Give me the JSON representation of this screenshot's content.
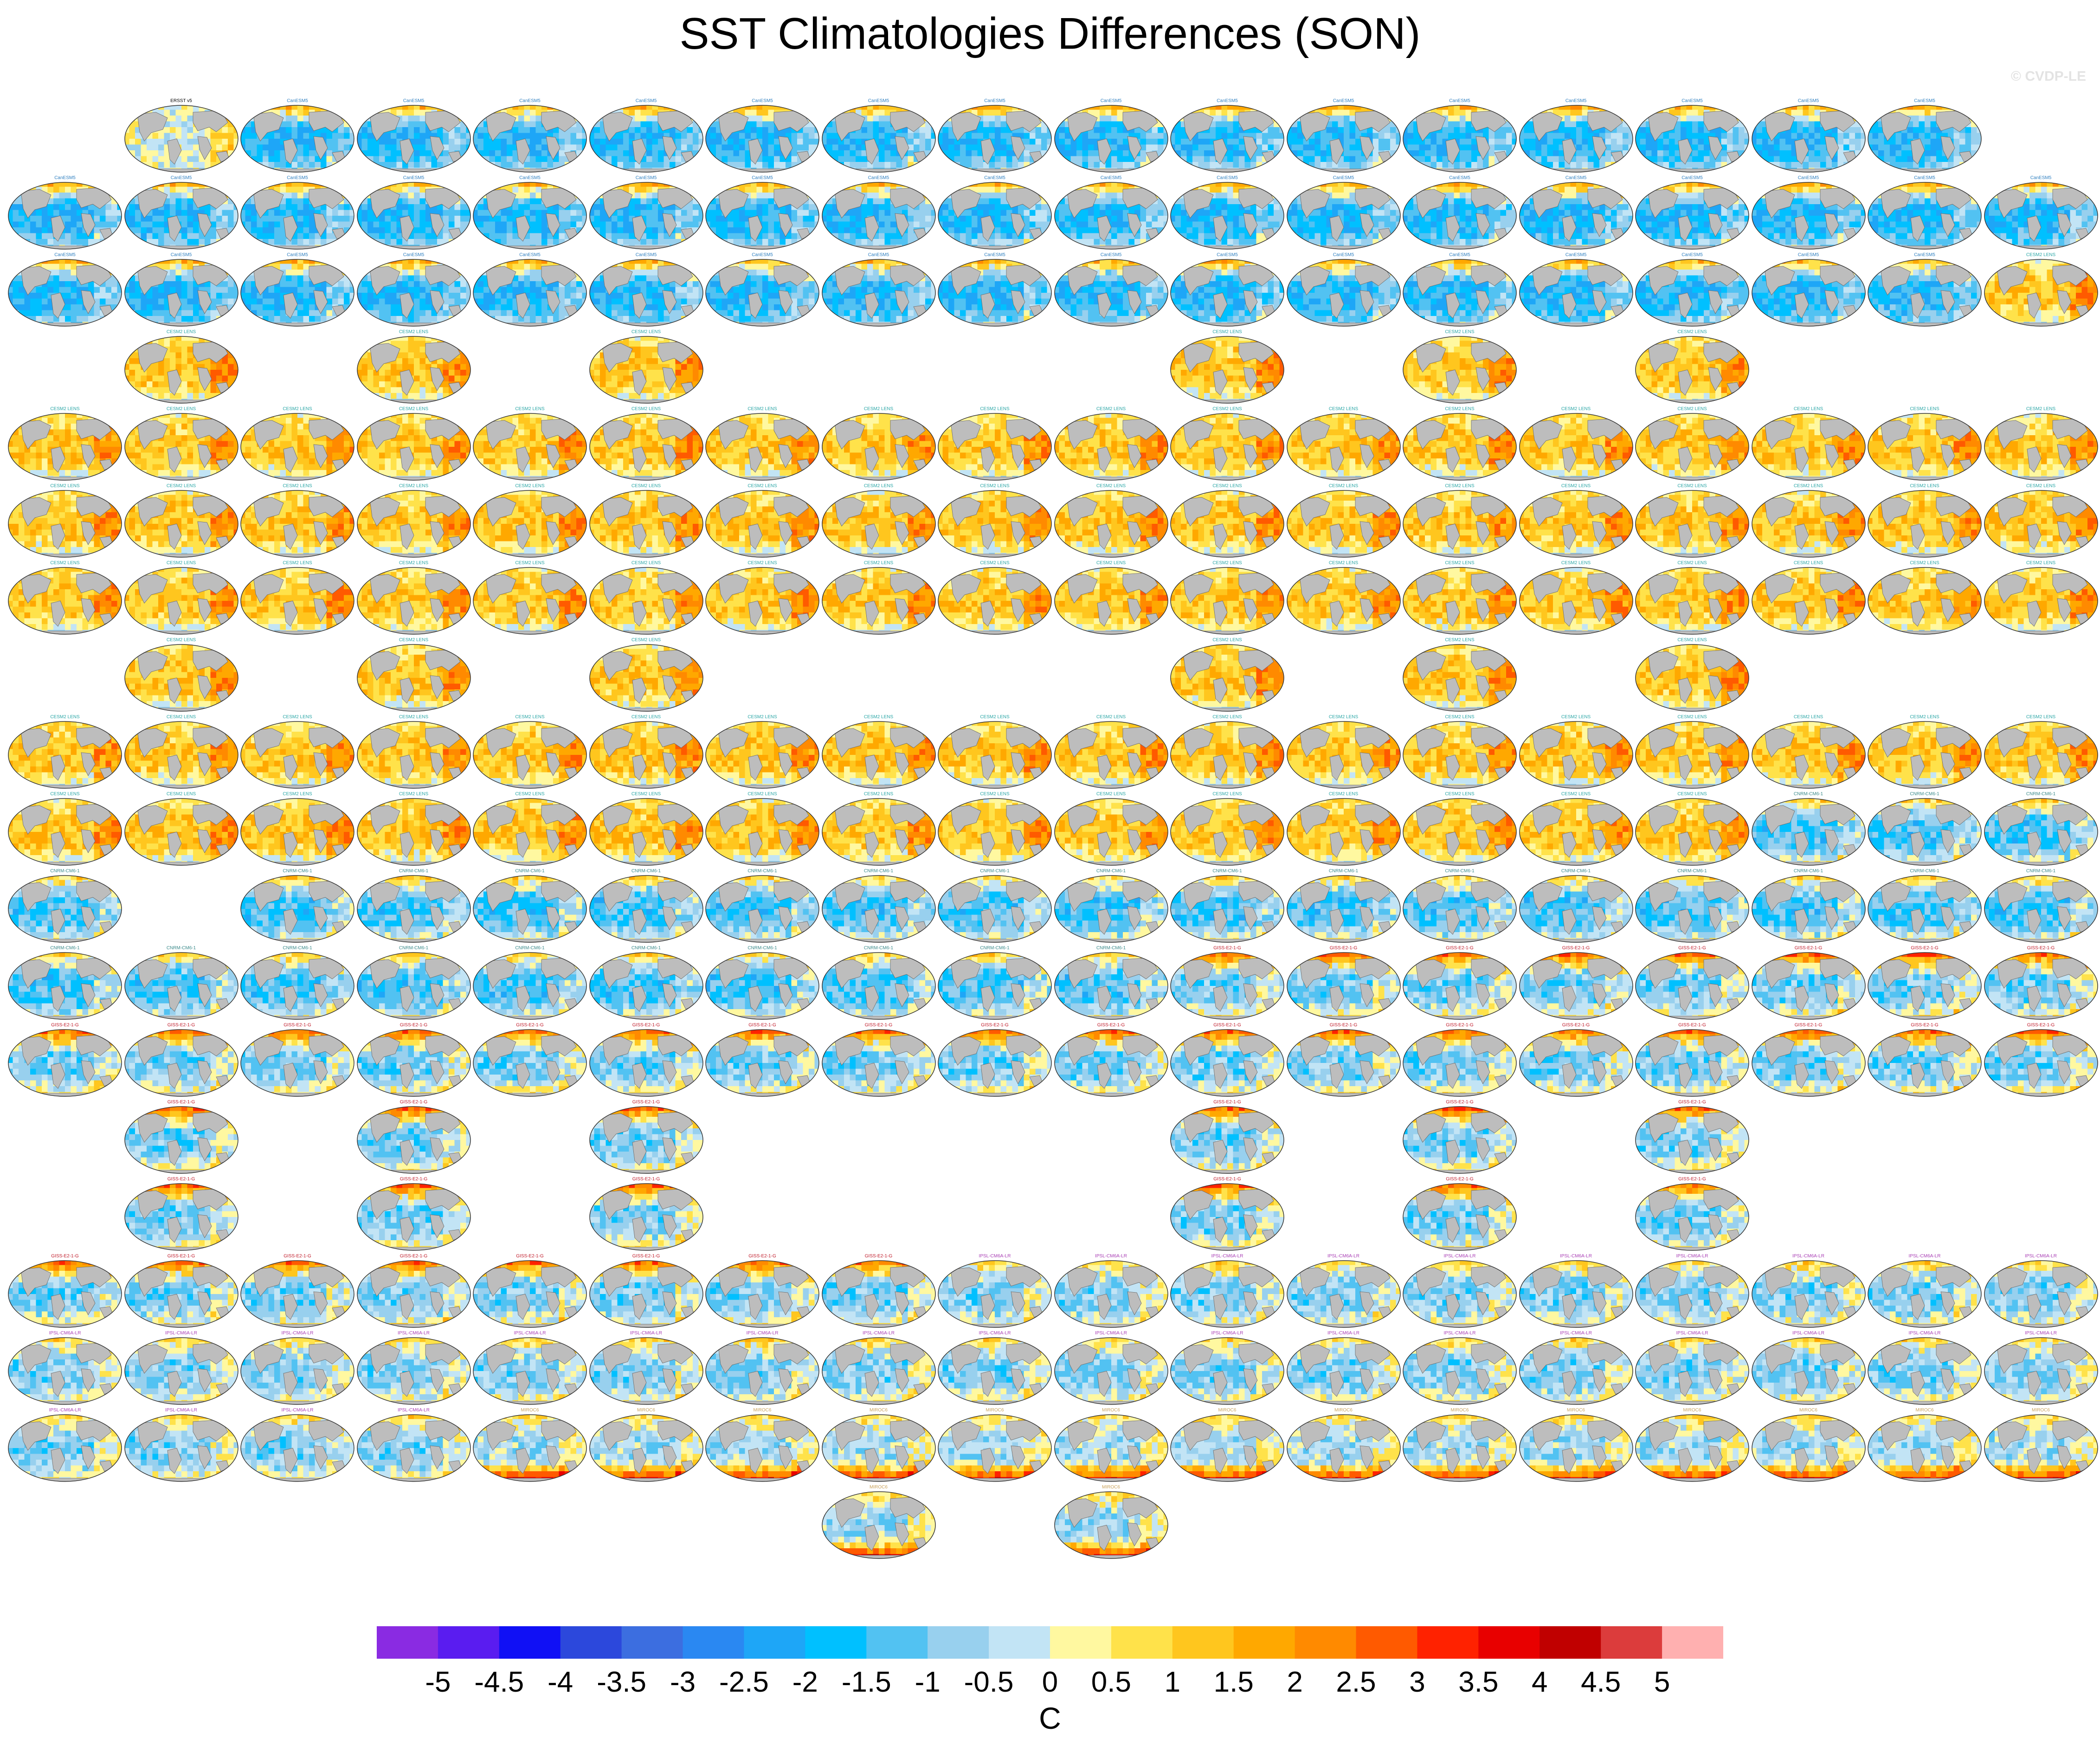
{
  "title": "SST Climatologies Differences (SON)",
  "copyright": "© CVDP-LE",
  "chart_data": {
    "type": "heatmap",
    "title": "SST Climatologies Differences (SON)",
    "season": "SON",
    "units": "C",
    "colorbar": {
      "levels": [
        -5,
        -4.5,
        -4,
        -3.5,
        -3,
        -2.5,
        -2,
        -1.5,
        -1,
        -0.5,
        0,
        0.5,
        1,
        1.5,
        2,
        2.5,
        3,
        3.5,
        4,
        4.5,
        5
      ],
      "labels": [
        "-5",
        "-4.5",
        "-4",
        "-3.5",
        "-3",
        "-2.5",
        "-2",
        "-1.5",
        "-1",
        "-0.5",
        "0",
        "0.5",
        "1",
        "1.5",
        "2",
        "2.5",
        "3",
        "3.5",
        "4",
        "4.5",
        "5"
      ],
      "colors": [
        "#8a2be2",
        "#5a1cf0",
        "#1010f5",
        "#2c48dc",
        "#3c6ee0",
        "#2a88f2",
        "#1ea6f7",
        "#00c0ff",
        "#52c2f2",
        "#98d0ee",
        "#c2e4f5",
        "#fff8a0",
        "#ffe24a",
        "#ffc61e",
        "#ffa800",
        "#ff8a00",
        "#ff5a00",
        "#ff2200",
        "#e80000",
        "#c00000",
        "#dc3c3c",
        "#ffb0b0"
      ]
    },
    "panel_groups": [
      {
        "name": "ERSST v5",
        "color": "#000000",
        "count": 1,
        "bias": [
          0.0,
          0.0,
          0.0
        ]
      },
      {
        "name": "CanESM5",
        "color": "#2e7fc0",
        "count": 50,
        "bias": [
          -1.8,
          1.5,
          -0.6
        ]
      },
      {
        "name": "CESM2 LENS",
        "color": "#2aa6a6",
        "count": 100,
        "bias": [
          1.2,
          0.6,
          -0.2
        ]
      },
      {
        "name": "CNRM-CM6-1",
        "color": "#3a8a8a",
        "count": 30,
        "bias": [
          -1.4,
          1.0,
          0.1
        ]
      },
      {
        "name": "GISS-E2-1-G",
        "color": "#c01b2a",
        "count": 46,
        "bias": [
          -1.0,
          2.6,
          0.5
        ]
      },
      {
        "name": "IPSL-CM6A-LR",
        "color": "#a83cb4",
        "count": 32,
        "bias": [
          -0.9,
          0.9,
          0.3
        ]
      },
      {
        "name": "MIROC6",
        "color": "#c9a25a",
        "count": 50,
        "bias": [
          -0.6,
          0.8,
          3.6
        ]
      }
    ],
    "layout_rows": [
      [
        1,
        17
      ],
      [
        0,
        18
      ],
      [
        0,
        18
      ],
      [
        "sparse"
      ],
      [
        0,
        18
      ],
      [
        0,
        18
      ],
      [
        0,
        18
      ],
      [
        "sparse"
      ],
      [
        0,
        18
      ],
      [
        0,
        18
      ],
      [
        0,
        18
      ],
      [
        0,
        18
      ],
      [
        0,
        18
      ],
      [
        "sparse13"
      ],
      [
        "sparse"
      ],
      [
        0,
        18
      ],
      [
        0,
        18
      ],
      [
        0,
        18
      ],
      [
        "pair"
      ]
    ]
  }
}
